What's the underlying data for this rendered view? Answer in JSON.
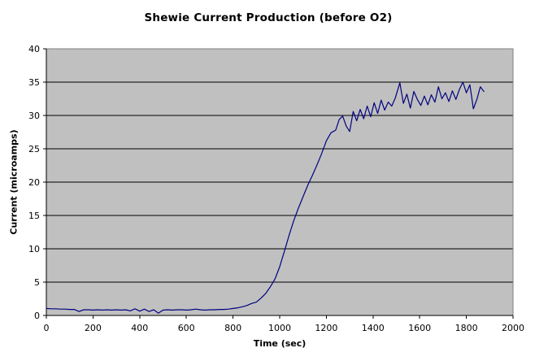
{
  "window": {
    "background_color": "#ffffff",
    "text_color": "#000000"
  },
  "chart_data": {
    "type": "line",
    "title": "Shewie Current Production (before O2)",
    "xlabel": "Time (sec)",
    "ylabel": "Current (microamps)",
    "xlim": [
      0,
      2000
    ],
    "ylim": [
      0,
      40
    ],
    "x_ticks": [
      0,
      200,
      400,
      600,
      800,
      1000,
      1200,
      1400,
      1600,
      1800,
      2000
    ],
    "y_ticks": [
      0,
      5,
      10,
      15,
      20,
      25,
      30,
      35,
      40
    ],
    "grid": "horizontal-major",
    "legend": "none",
    "plot_bg_color": "#c0c0c0",
    "plot_border_color": "#808080",
    "gridline_color": "#000000",
    "axis_color": "#000000",
    "line_color": "#000080",
    "series": [
      {
        "name": "Current",
        "points": [
          [
            0,
            1.05
          ],
          [
            20,
            1.0
          ],
          [
            40,
            1.0
          ],
          [
            60,
            0.95
          ],
          [
            80,
            0.95
          ],
          [
            100,
            0.9
          ],
          [
            120,
            0.9
          ],
          [
            140,
            0.6
          ],
          [
            160,
            0.85
          ],
          [
            180,
            0.85
          ],
          [
            200,
            0.8
          ],
          [
            220,
            0.85
          ],
          [
            240,
            0.8
          ],
          [
            260,
            0.85
          ],
          [
            280,
            0.8
          ],
          [
            300,
            0.85
          ],
          [
            320,
            0.8
          ],
          [
            340,
            0.85
          ],
          [
            360,
            0.7
          ],
          [
            380,
            1.0
          ],
          [
            400,
            0.65
          ],
          [
            420,
            0.95
          ],
          [
            440,
            0.6
          ],
          [
            460,
            0.85
          ],
          [
            480,
            0.35
          ],
          [
            500,
            0.8
          ],
          [
            520,
            0.85
          ],
          [
            540,
            0.8
          ],
          [
            560,
            0.85
          ],
          [
            580,
            0.85
          ],
          [
            600,
            0.8
          ],
          [
            620,
            0.85
          ],
          [
            640,
            0.95
          ],
          [
            660,
            0.85
          ],
          [
            680,
            0.8
          ],
          [
            700,
            0.85
          ],
          [
            720,
            0.85
          ],
          [
            740,
            0.9
          ],
          [
            760,
            0.9
          ],
          [
            780,
            0.95
          ],
          [
            800,
            1.05
          ],
          [
            820,
            1.15
          ],
          [
            840,
            1.3
          ],
          [
            860,
            1.5
          ],
          [
            880,
            1.8
          ],
          [
            900,
            2.0
          ],
          [
            920,
            2.6
          ],
          [
            940,
            3.3
          ],
          [
            960,
            4.3
          ],
          [
            980,
            5.5
          ],
          [
            1000,
            7.3
          ],
          [
            1020,
            9.6
          ],
          [
            1040,
            12.0
          ],
          [
            1060,
            14.2
          ],
          [
            1080,
            16.1
          ],
          [
            1100,
            17.8
          ],
          [
            1120,
            19.5
          ],
          [
            1140,
            21.0
          ],
          [
            1160,
            22.6
          ],
          [
            1180,
            24.3
          ],
          [
            1200,
            26.2
          ],
          [
            1220,
            27.4
          ],
          [
            1240,
            27.8
          ],
          [
            1255,
            29.4
          ],
          [
            1270,
            29.9
          ],
          [
            1285,
            28.4
          ],
          [
            1300,
            27.6
          ],
          [
            1315,
            30.6
          ],
          [
            1330,
            29.2
          ],
          [
            1345,
            30.9
          ],
          [
            1360,
            29.5
          ],
          [
            1375,
            31.4
          ],
          [
            1390,
            29.8
          ],
          [
            1405,
            31.9
          ],
          [
            1420,
            30.3
          ],
          [
            1435,
            32.3
          ],
          [
            1450,
            30.8
          ],
          [
            1465,
            32.0
          ],
          [
            1480,
            31.4
          ],
          [
            1495,
            32.6
          ],
          [
            1515,
            34.9
          ],
          [
            1530,
            31.8
          ],
          [
            1545,
            33.2
          ],
          [
            1560,
            31.1
          ],
          [
            1575,
            33.6
          ],
          [
            1590,
            32.4
          ],
          [
            1605,
            31.5
          ],
          [
            1620,
            32.9
          ],
          [
            1635,
            31.6
          ],
          [
            1650,
            33.1
          ],
          [
            1665,
            32.0
          ],
          [
            1680,
            34.3
          ],
          [
            1695,
            32.5
          ],
          [
            1710,
            33.4
          ],
          [
            1725,
            32.1
          ],
          [
            1740,
            33.7
          ],
          [
            1755,
            32.4
          ],
          [
            1770,
            33.9
          ],
          [
            1785,
            35.0
          ],
          [
            1800,
            33.4
          ],
          [
            1815,
            34.6
          ],
          [
            1830,
            31.0
          ],
          [
            1845,
            32.4
          ],
          [
            1860,
            34.3
          ],
          [
            1875,
            33.6
          ]
        ]
      }
    ]
  }
}
